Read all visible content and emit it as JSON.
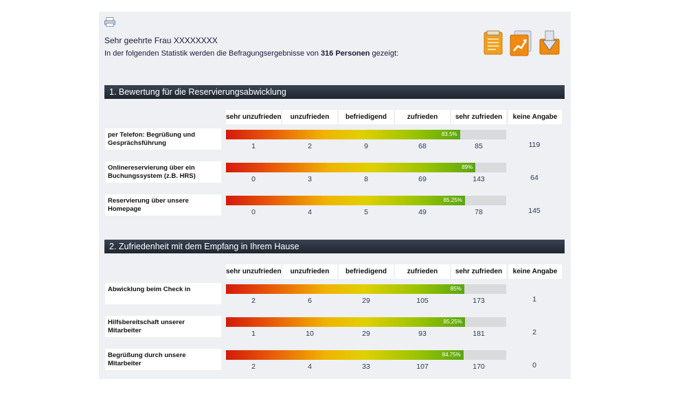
{
  "greeting": "Sehr geehrte Frau XXXXXXXX",
  "intro": {
    "before": "In der folgenden Statistik werden die Befragungsergebnisse von",
    "count": "316 Personen",
    "after": "gezeigt:"
  },
  "toolbar": {
    "icons": [
      "notes-icon",
      "chart-trend-icon",
      "download-icon"
    ]
  },
  "colors": {
    "header_bg": "#1f2630",
    "panel_bg": "#eef0f3",
    "bar_red": "#d41a0a",
    "bar_yellow": "#f0b400",
    "bar_green": "#5aa612",
    "bar_track": "#d9dadc"
  },
  "columns": [
    "sehr unzufrieden",
    "unzufrieden",
    "befriedigend",
    "zufrieden",
    "sehr zufrieden",
    "keine Angabe"
  ],
  "sections": [
    {
      "title": "1. Bewertung für die Reservierungsabwicklung",
      "rows": [
        {
          "label": "per Telefon: Begrüßung und Gesprächsführung",
          "percent": 83.5,
          "percent_label": "83.5%",
          "counts": [
            "1",
            "2",
            "9",
            "68",
            "85",
            "119"
          ]
        },
        {
          "label": "Onlinereservierung über ein Buchungssystem (z.B. HRS)",
          "percent": 89,
          "percent_label": "89%",
          "counts": [
            "0",
            "3",
            "8",
            "69",
            "143",
            "64"
          ]
        },
        {
          "label": "Reservierung über unsere Homepage",
          "percent": 85.25,
          "percent_label": "85.25%",
          "counts": [
            "0",
            "4",
            "5",
            "49",
            "78",
            "145"
          ]
        }
      ]
    },
    {
      "title": "2. Zufriedenheit mit dem Empfang in Ihrem Hause",
      "rows": [
        {
          "label": "Abwicklung beim Check in",
          "percent": 85,
          "percent_label": "85%",
          "counts": [
            "2",
            "6",
            "29",
            "105",
            "173",
            "1"
          ]
        },
        {
          "label": "Hilfsbereitschaft unserer Mitarbeiter",
          "percent": 85.25,
          "percent_label": "85.25%",
          "counts": [
            "1",
            "10",
            "29",
            "93",
            "181",
            "2"
          ]
        },
        {
          "label": "Begrüßung durch unsere Mitarbeiter",
          "percent": 84.75,
          "percent_label": "84.75%",
          "counts": [
            "2",
            "4",
            "33",
            "107",
            "170",
            "0"
          ]
        }
      ]
    }
  ]
}
